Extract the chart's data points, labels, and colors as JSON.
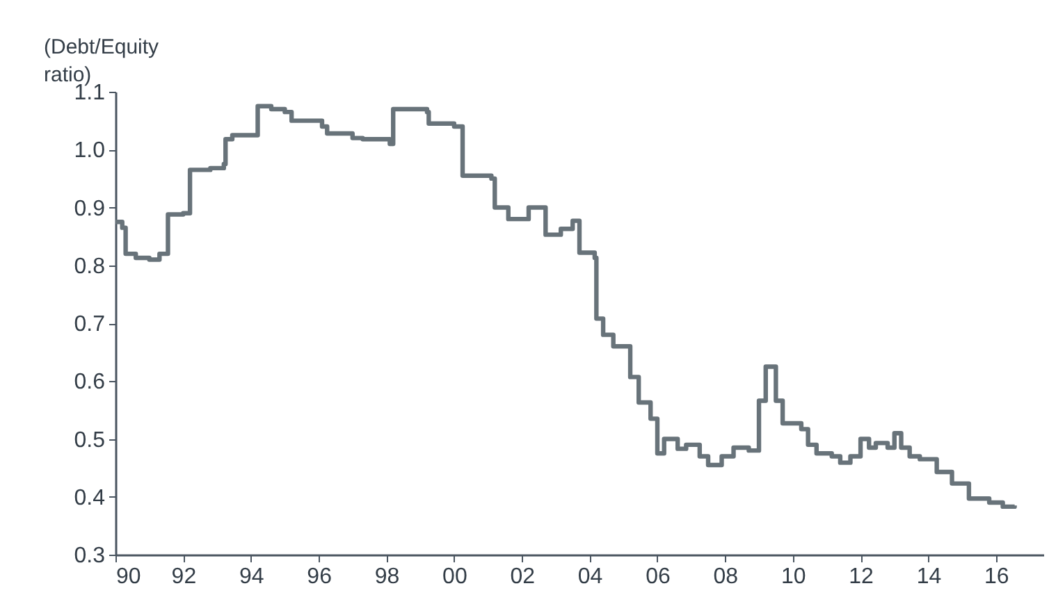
{
  "chart_data": {
    "type": "step",
    "ylabel": "(Debt/Equity ratio)",
    "x": [
      1990.0,
      1990.2,
      1990.3,
      1990.6,
      1991.0,
      1991.3,
      1991.55,
      1992.0,
      1992.2,
      1992.8,
      1993.2,
      1993.25,
      1993.45,
      1994.2,
      1994.6,
      1995.0,
      1995.2,
      1995.8,
      1996.1,
      1996.25,
      1997.0,
      1997.3,
      1998.1,
      1998.2,
      1999.2,
      1999.25,
      2000.0,
      2000.25,
      2001.1,
      2001.2,
      2001.6,
      2002.2,
      2002.7,
      2003.15,
      2003.5,
      2003.7,
      2004.15,
      2004.2,
      2004.4,
      2004.7,
      2005.2,
      2005.45,
      2005.8,
      2006.0,
      2006.2,
      2006.6,
      2006.85,
      2007.25,
      2007.5,
      2007.9,
      2008.25,
      2008.7,
      2009.0,
      2009.2,
      2009.5,
      2009.7,
      2010.25,
      2010.45,
      2010.7,
      2011.15,
      2011.4,
      2011.7,
      2012.0,
      2012.25,
      2012.45,
      2012.8,
      2013.0,
      2013.2,
      2013.45,
      2013.75,
      2014.25,
      2014.7,
      2015.2,
      2015.8,
      2016.2,
      2016.55
    ],
    "series": [
      {
        "color": "#68737a",
        "values": [
          0.875,
          0.865,
          0.82,
          0.813,
          0.81,
          0.82,
          0.888,
          0.89,
          0.965,
          0.968,
          0.975,
          1.018,
          1.025,
          1.075,
          1.07,
          1.065,
          1.05,
          1.05,
          1.04,
          1.028,
          1.02,
          1.018,
          1.01,
          1.07,
          1.065,
          1.045,
          1.04,
          0.955,
          0.95,
          0.9,
          0.88,
          0.9,
          0.853,
          0.863,
          0.877,
          0.822,
          0.813,
          0.708,
          0.68,
          0.66,
          0.607,
          0.563,
          0.535,
          0.475,
          0.5,
          0.483,
          0.49,
          0.47,
          0.455,
          0.47,
          0.485,
          0.48,
          0.566,
          0.625,
          0.566,
          0.527,
          0.517,
          0.49,
          0.475,
          0.47,
          0.459,
          0.47,
          0.5,
          0.485,
          0.493,
          0.485,
          0.51,
          0.485,
          0.47,
          0.465,
          0.443,
          0.423,
          0.397,
          0.39,
          0.383,
          0.385
        ]
      }
    ],
    "xlim": [
      1990,
      2017.4
    ],
    "xticks": [
      {
        "value": 1990,
        "label": "90"
      },
      {
        "value": 1992,
        "label": "92"
      },
      {
        "value": 1994,
        "label": "94"
      },
      {
        "value": 1996,
        "label": "96"
      },
      {
        "value": 1998,
        "label": "98"
      },
      {
        "value": 2000,
        "label": "00"
      },
      {
        "value": 2002,
        "label": "02"
      },
      {
        "value": 2004,
        "label": "04"
      },
      {
        "value": 2006,
        "label": "06"
      },
      {
        "value": 2008,
        "label": "08"
      },
      {
        "value": 2010,
        "label": "10"
      },
      {
        "value": 2012,
        "label": "12"
      },
      {
        "value": 2014,
        "label": "14"
      },
      {
        "value": 2016,
        "label": "16"
      }
    ],
    "ylim": [
      0.3,
      1.1
    ],
    "yticks": [
      {
        "value": 0.3,
        "label": "0.3"
      },
      {
        "value": 0.4,
        "label": "0.4"
      },
      {
        "value": 0.5,
        "label": "0.5"
      },
      {
        "value": 0.6,
        "label": "0.6"
      },
      {
        "value": 0.7,
        "label": "0.7"
      },
      {
        "value": 0.8,
        "label": "0.8"
      },
      {
        "value": 0.9,
        "label": "0.9"
      },
      {
        "value": 1.0,
        "label": "1.0"
      },
      {
        "value": 1.1,
        "label": "1.1"
      }
    ],
    "grid": false
  }
}
